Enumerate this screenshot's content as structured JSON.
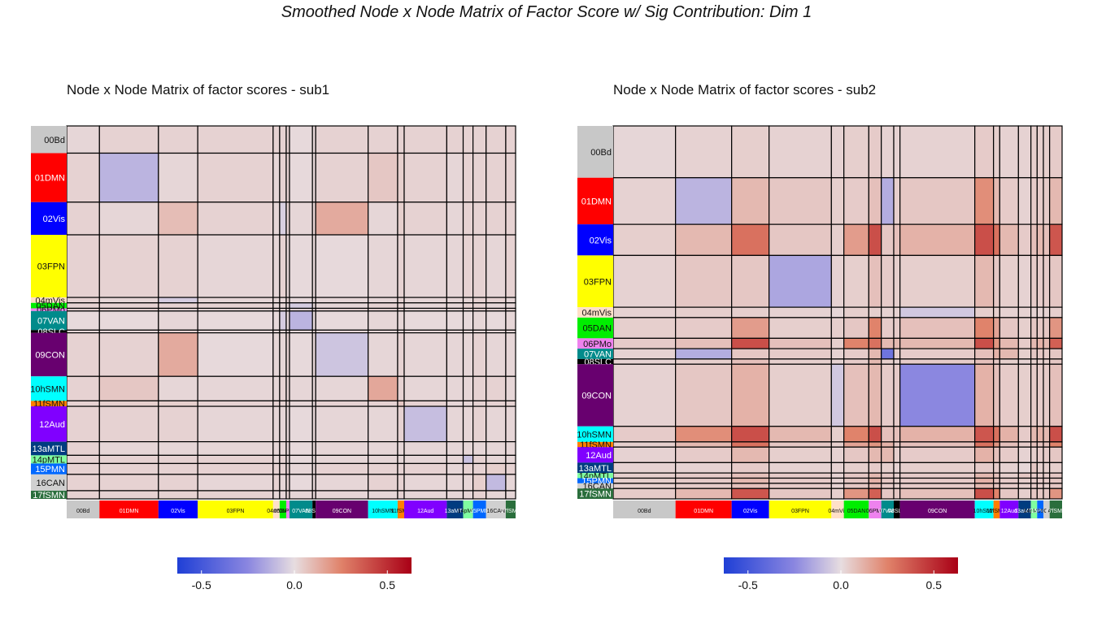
{
  "title": "Smoothed Node x Node Matrix of Factor Score w/ Sig Contribution: Dim 1",
  "colors": {
    "scale_low": "#1f3fd6",
    "scale_mid": "#e7dde0",
    "scale_high": "#a90016"
  },
  "chart_data": [
    {
      "type": "heatmap",
      "title": "Node x Node Matrix of factor scores - sub1",
      "colorbar": {
        "ticks": [
          "-0.5",
          "0.0",
          "0.5"
        ],
        "range": [
          -0.63,
          0.63
        ]
      },
      "networks": [
        {
          "label": "00Bd",
          "size": 10,
          "color": "#c8c8c8"
        },
        {
          "label": "01DMN",
          "size": 18,
          "color": "#ff0000"
        },
        {
          "label": "02Vis",
          "size": 12,
          "color": "#0000ff"
        },
        {
          "label": "03FPN",
          "size": 23,
          "color": "#ffff00"
        },
        {
          "label": "04mVis",
          "size": 2,
          "color": "#ffe0c8"
        },
        {
          "label": "05DAN",
          "size": 2,
          "color": "#00ee00"
        },
        {
          "label": "06PMo",
          "size": 1,
          "color": "#ee82ee"
        },
        {
          "label": "07VAN",
          "size": 7,
          "color": "#008b8b"
        },
        {
          "label": "08SLC",
          "size": 1,
          "color": "#000000"
        },
        {
          "label": "09CON",
          "size": 16,
          "color": "#68006f"
        },
        {
          "label": "10hSMN",
          "size": 9,
          "color": "#00ffff"
        },
        {
          "label": "11fSMN",
          "size": 2,
          "color": "#ff7f00"
        },
        {
          "label": "12Aud",
          "size": 13,
          "color": "#8000ff"
        },
        {
          "label": "13aMTL",
          "size": 5,
          "color": "#003c80"
        },
        {
          "label": "14pMTL",
          "size": 3,
          "color": "#80ffa0"
        },
        {
          "label": "15PMN",
          "size": 4,
          "color": "#0068ff"
        },
        {
          "label": "16CAN",
          "size": 6,
          "color": "#d0d0d0"
        },
        {
          "label": "17fSMN",
          "size": 3,
          "color": "#2a6e3c"
        }
      ],
      "values": [
        [
          0.02,
          0.03,
          0.03,
          0.03,
          0.03,
          0.03,
          0.03,
          0.01,
          0.02,
          0.03,
          0.03,
          0.03,
          0.03,
          0.03,
          0.03,
          0.03,
          0.03,
          0.03
        ],
        [
          0.03,
          -0.12,
          0.02,
          0.03,
          0.02,
          0.03,
          0.03,
          0.01,
          0.02,
          0.03,
          0.06,
          0.04,
          0.03,
          0.02,
          0.03,
          0.03,
          0.03,
          0.03
        ],
        [
          0.03,
          0.02,
          0.09,
          0.03,
          0.02,
          -0.04,
          0.03,
          0.02,
          0.03,
          0.14,
          0.02,
          0.04,
          0.03,
          0.02,
          0.03,
          0.03,
          0.03,
          0.03
        ],
        [
          0.03,
          0.03,
          0.03,
          0.02,
          0.02,
          0.03,
          0.02,
          0.01,
          0.02,
          0.01,
          0.02,
          0.03,
          0.02,
          0.02,
          0.03,
          0.03,
          0.02,
          0.03
        ],
        [
          0.03,
          0.02,
          -0.05,
          0.02,
          0.02,
          0.02,
          0.03,
          0.01,
          0.02,
          0.02,
          0.02,
          0.03,
          0.02,
          0.02,
          0.02,
          0.03,
          0.03,
          0.02
        ],
        [
          0.03,
          0.03,
          0.03,
          0.03,
          0.02,
          0.02,
          0.02,
          -0.05,
          0.02,
          0.02,
          0.03,
          0.03,
          0.02,
          0.02,
          0.03,
          0.03,
          0.02,
          0.02
        ],
        [
          0.03,
          0.03,
          0.02,
          0.02,
          0.03,
          0.02,
          0.02,
          0.01,
          0.02,
          0.03,
          0.03,
          0.03,
          0.02,
          0.02,
          0.02,
          0.03,
          0.03,
          0.03
        ],
        [
          0.01,
          0.01,
          0.02,
          0.01,
          0.01,
          -0.05,
          0.01,
          -0.12,
          0.01,
          0.01,
          0.02,
          0.02,
          0.01,
          0.01,
          0.01,
          0.02,
          0.01,
          0.02
        ],
        [
          0.02,
          0.02,
          0.03,
          0.02,
          0.02,
          0.02,
          0.02,
          0.01,
          0.02,
          0.02,
          0.02,
          0.02,
          0.02,
          0.02,
          0.02,
          0.02,
          0.02,
          0.02
        ],
        [
          0.03,
          0.03,
          0.14,
          0.01,
          0.02,
          0.02,
          0.03,
          0.01,
          0.02,
          -0.07,
          0.02,
          0.03,
          0.02,
          0.02,
          0.02,
          0.03,
          0.02,
          0.02
        ],
        [
          0.03,
          0.06,
          0.02,
          0.02,
          0.02,
          0.03,
          0.03,
          0.02,
          0.02,
          0.02,
          0.15,
          0.03,
          0.02,
          0.02,
          0.02,
          0.03,
          0.03,
          0.02
        ],
        [
          0.03,
          0.04,
          0.04,
          0.03,
          0.03,
          0.03,
          0.03,
          0.02,
          0.02,
          0.03,
          0.03,
          0.06,
          0.03,
          0.02,
          0.02,
          0.03,
          0.03,
          0.03
        ],
        [
          0.03,
          0.03,
          0.03,
          0.02,
          0.02,
          0.02,
          0.02,
          0.01,
          0.02,
          0.02,
          0.02,
          0.03,
          -0.09,
          0.02,
          0.02,
          0.03,
          0.02,
          0.02
        ],
        [
          0.03,
          0.02,
          0.02,
          0.02,
          0.02,
          0.02,
          0.02,
          0.01,
          0.02,
          0.02,
          0.02,
          0.02,
          0.02,
          0.02,
          0.02,
          0.02,
          0.02,
          0.02
        ],
        [
          0.03,
          0.03,
          0.03,
          0.03,
          0.02,
          0.03,
          0.02,
          0.01,
          0.02,
          0.02,
          0.02,
          0.02,
          0.02,
          0.02,
          -0.08,
          0.03,
          0.02,
          0.02
        ],
        [
          0.03,
          0.03,
          0.03,
          0.03,
          0.03,
          0.03,
          0.03,
          0.02,
          0.02,
          0.03,
          0.03,
          0.03,
          0.03,
          0.02,
          0.03,
          0.03,
          0.04,
          0.03
        ],
        [
          0.03,
          0.03,
          0.03,
          0.02,
          0.03,
          0.02,
          0.03,
          0.01,
          0.02,
          0.02,
          0.03,
          0.03,
          0.02,
          0.02,
          0.02,
          0.04,
          -0.1,
          0.02
        ],
        [
          0.03,
          0.03,
          0.03,
          0.03,
          0.02,
          0.02,
          0.03,
          0.02,
          0.02,
          0.02,
          0.02,
          0.03,
          0.02,
          0.02,
          0.02,
          0.03,
          0.02,
          0.02
        ]
      ]
    },
    {
      "type": "heatmap",
      "title": "Node x Node Matrix of factor scores - sub2",
      "colorbar": {
        "ticks": [
          "-0.5",
          "0.0",
          "0.5"
        ],
        "range": [
          -0.63,
          0.63
        ]
      },
      "networks": [
        {
          "label": "00Bd",
          "size": 10,
          "color": "#c8c8c8"
        },
        {
          "label": "01DMN",
          "size": 9,
          "color": "#ff0000"
        },
        {
          "label": "02Vis",
          "size": 6,
          "color": "#0000ff"
        },
        {
          "label": "03FPN",
          "size": 10,
          "color": "#ffff00"
        },
        {
          "label": "04mVis",
          "size": 2,
          "color": "#ffe0c8"
        },
        {
          "label": "05DAN",
          "size": 4,
          "color": "#00ee00"
        },
        {
          "label": "06PMo",
          "size": 2,
          "color": "#ee82ee"
        },
        {
          "label": "07VAN",
          "size": 2,
          "color": "#008b8b"
        },
        {
          "label": "08SLC",
          "size": 1,
          "color": "#000000"
        },
        {
          "label": "09CON",
          "size": 12,
          "color": "#68006f"
        },
        {
          "label": "10hSMN",
          "size": 3,
          "color": "#00ffff"
        },
        {
          "label": "11fSMN",
          "size": 1,
          "color": "#ff7f00"
        },
        {
          "label": "12Aud",
          "size": 3,
          "color": "#8000ff"
        },
        {
          "label": "13aMTL",
          "size": 2,
          "color": "#003c80"
        },
        {
          "label": "14pMTL",
          "size": 1,
          "color": "#80ffa0"
        },
        {
          "label": "15PMN",
          "size": 1,
          "color": "#0068ff"
        },
        {
          "label": "16CAN",
          "size": 1,
          "color": "#d0d0d0"
        },
        {
          "label": "17fSMN",
          "size": 2,
          "color": "#2a6e3c"
        }
      ],
      "values": [
        [
          0.02,
          0.03,
          0.04,
          0.03,
          0.03,
          0.04,
          0.05,
          0.03,
          0.03,
          0.03,
          0.05,
          0.04,
          0.03,
          0.03,
          0.04,
          0.04,
          0.04,
          0.05
        ],
        [
          0.03,
          -0.12,
          0.1,
          0.06,
          0.04,
          0.05,
          0.08,
          -0.14,
          0.04,
          0.06,
          0.22,
          0.1,
          0.05,
          0.03,
          0.05,
          0.05,
          0.05,
          0.1
        ],
        [
          0.04,
          0.1,
          0.3,
          0.06,
          0.04,
          0.18,
          0.4,
          0.06,
          0.08,
          0.12,
          0.4,
          0.3,
          0.1,
          0.05,
          0.08,
          0.1,
          0.08,
          0.38
        ],
        [
          0.03,
          0.06,
          0.06,
          -0.16,
          0.03,
          0.04,
          0.08,
          0.05,
          0.04,
          0.04,
          0.1,
          0.06,
          0.04,
          0.03,
          0.05,
          0.05,
          0.05,
          0.06
        ],
        [
          0.03,
          0.04,
          0.04,
          0.03,
          0.02,
          0.04,
          0.04,
          0.03,
          0.03,
          -0.06,
          0.04,
          0.04,
          0.03,
          0.03,
          0.03,
          0.03,
          0.03,
          0.04
        ],
        [
          0.04,
          0.05,
          0.18,
          0.04,
          0.04,
          0.06,
          0.25,
          0.05,
          0.05,
          0.08,
          0.25,
          0.16,
          0.06,
          0.04,
          0.06,
          0.06,
          0.06,
          0.2
        ],
        [
          0.05,
          0.08,
          0.4,
          0.08,
          0.04,
          0.25,
          0.3,
          0.1,
          0.1,
          0.1,
          0.4,
          0.2,
          0.1,
          0.05,
          0.1,
          0.12,
          0.1,
          0.35
        ],
        [
          0.03,
          -0.14,
          0.06,
          0.05,
          0.03,
          0.05,
          0.1,
          -0.35,
          0.04,
          0.05,
          0.08,
          0.12,
          0.1,
          0.04,
          0.06,
          0.06,
          0.05,
          0.06
        ],
        [
          0.03,
          0.04,
          0.08,
          0.04,
          0.03,
          0.05,
          0.1,
          0.04,
          0.03,
          0.05,
          0.08,
          0.06,
          0.04,
          0.03,
          0.04,
          0.04,
          0.04,
          0.06
        ],
        [
          0.03,
          0.06,
          0.12,
          0.04,
          -0.06,
          0.08,
          0.1,
          0.05,
          0.05,
          -0.25,
          0.12,
          0.08,
          0.05,
          0.04,
          0.05,
          0.05,
          0.05,
          0.08
        ],
        [
          0.05,
          0.22,
          0.4,
          0.1,
          0.04,
          0.25,
          0.4,
          0.08,
          0.08,
          0.12,
          0.38,
          0.3,
          0.12,
          0.05,
          0.1,
          0.12,
          0.1,
          0.4
        ],
        [
          0.04,
          0.1,
          0.3,
          0.06,
          0.04,
          0.16,
          0.2,
          0.12,
          0.06,
          0.08,
          0.3,
          0.2,
          0.08,
          0.05,
          0.08,
          0.08,
          0.08,
          0.25
        ],
        [
          0.03,
          0.05,
          0.1,
          0.04,
          0.03,
          0.06,
          0.1,
          0.1,
          0.04,
          0.05,
          0.12,
          0.08,
          0.05,
          0.03,
          0.04,
          0.05,
          0.05,
          0.06
        ],
        [
          0.03,
          0.03,
          0.05,
          0.03,
          0.03,
          0.04,
          0.05,
          0.04,
          0.03,
          0.04,
          0.05,
          0.05,
          0.03,
          0.02,
          0.06,
          0.04,
          0.04,
          0.04
        ],
        [
          0.04,
          0.05,
          0.08,
          0.05,
          0.03,
          0.06,
          0.1,
          0.06,
          0.04,
          0.05,
          0.1,
          0.08,
          0.04,
          0.06,
          0.05,
          0.05,
          0.05,
          0.06
        ],
        [
          0.04,
          0.05,
          0.1,
          0.05,
          0.03,
          0.06,
          0.12,
          0.06,
          0.04,
          0.05,
          0.12,
          0.08,
          0.05,
          0.04,
          0.05,
          0.05,
          0.05,
          0.06
        ],
        [
          0.04,
          0.05,
          0.08,
          0.05,
          0.03,
          0.06,
          0.1,
          0.05,
          0.04,
          0.05,
          0.1,
          0.08,
          0.05,
          0.04,
          0.05,
          0.05,
          0.04,
          0.06
        ],
        [
          0.05,
          0.1,
          0.38,
          0.06,
          0.04,
          0.2,
          0.35,
          0.06,
          0.06,
          0.08,
          0.4,
          0.25,
          0.06,
          0.04,
          0.06,
          0.06,
          0.06,
          0.2
        ]
      ]
    }
  ]
}
